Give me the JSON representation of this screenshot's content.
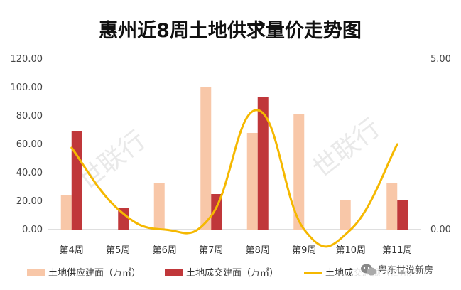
{
  "chart_data": {
    "type": "bar",
    "title": "惠州近8周土地供求量价走势图",
    "categories": [
      "第4周",
      "第5周",
      "第6周",
      "第7周",
      "第8周",
      "第9周",
      "第10周",
      "第11周"
    ],
    "series": [
      {
        "name": "土地供应建面（万㎡）",
        "type": "bar",
        "axis": "left",
        "color": "#f8c7a8",
        "values": [
          24,
          0,
          33,
          100,
          68,
          81,
          21,
          33
        ]
      },
      {
        "name": "土地成交建面（万㎡）",
        "type": "bar",
        "axis": "left",
        "color": "#c0373a",
        "values": [
          69,
          15,
          0,
          25,
          93,
          0,
          0,
          21
        ]
      },
      {
        "name": "土地成交总额（亿元）",
        "type": "line",
        "axis": "right",
        "color": "#f5b800",
        "values": [
          2.4,
          0.6,
          0.0,
          0.4,
          3.5,
          0.0,
          0.0,
          2.5
        ]
      }
    ],
    "y_left": {
      "min": 0,
      "max": 120,
      "ticks": [
        "0.00",
        "20.00",
        "40.00",
        "60.00",
        "80.00",
        "100.00",
        "120.00"
      ]
    },
    "y_right": {
      "min": 0,
      "max": 5,
      "ticks": [
        "0.00",
        "5.00"
      ]
    },
    "grid": false,
    "legend": "bottom"
  },
  "watermark": [
    "世联行",
    "世联行"
  ],
  "badge": {
    "text": "粤东世说新房",
    "icon": "wechat-icon"
  }
}
